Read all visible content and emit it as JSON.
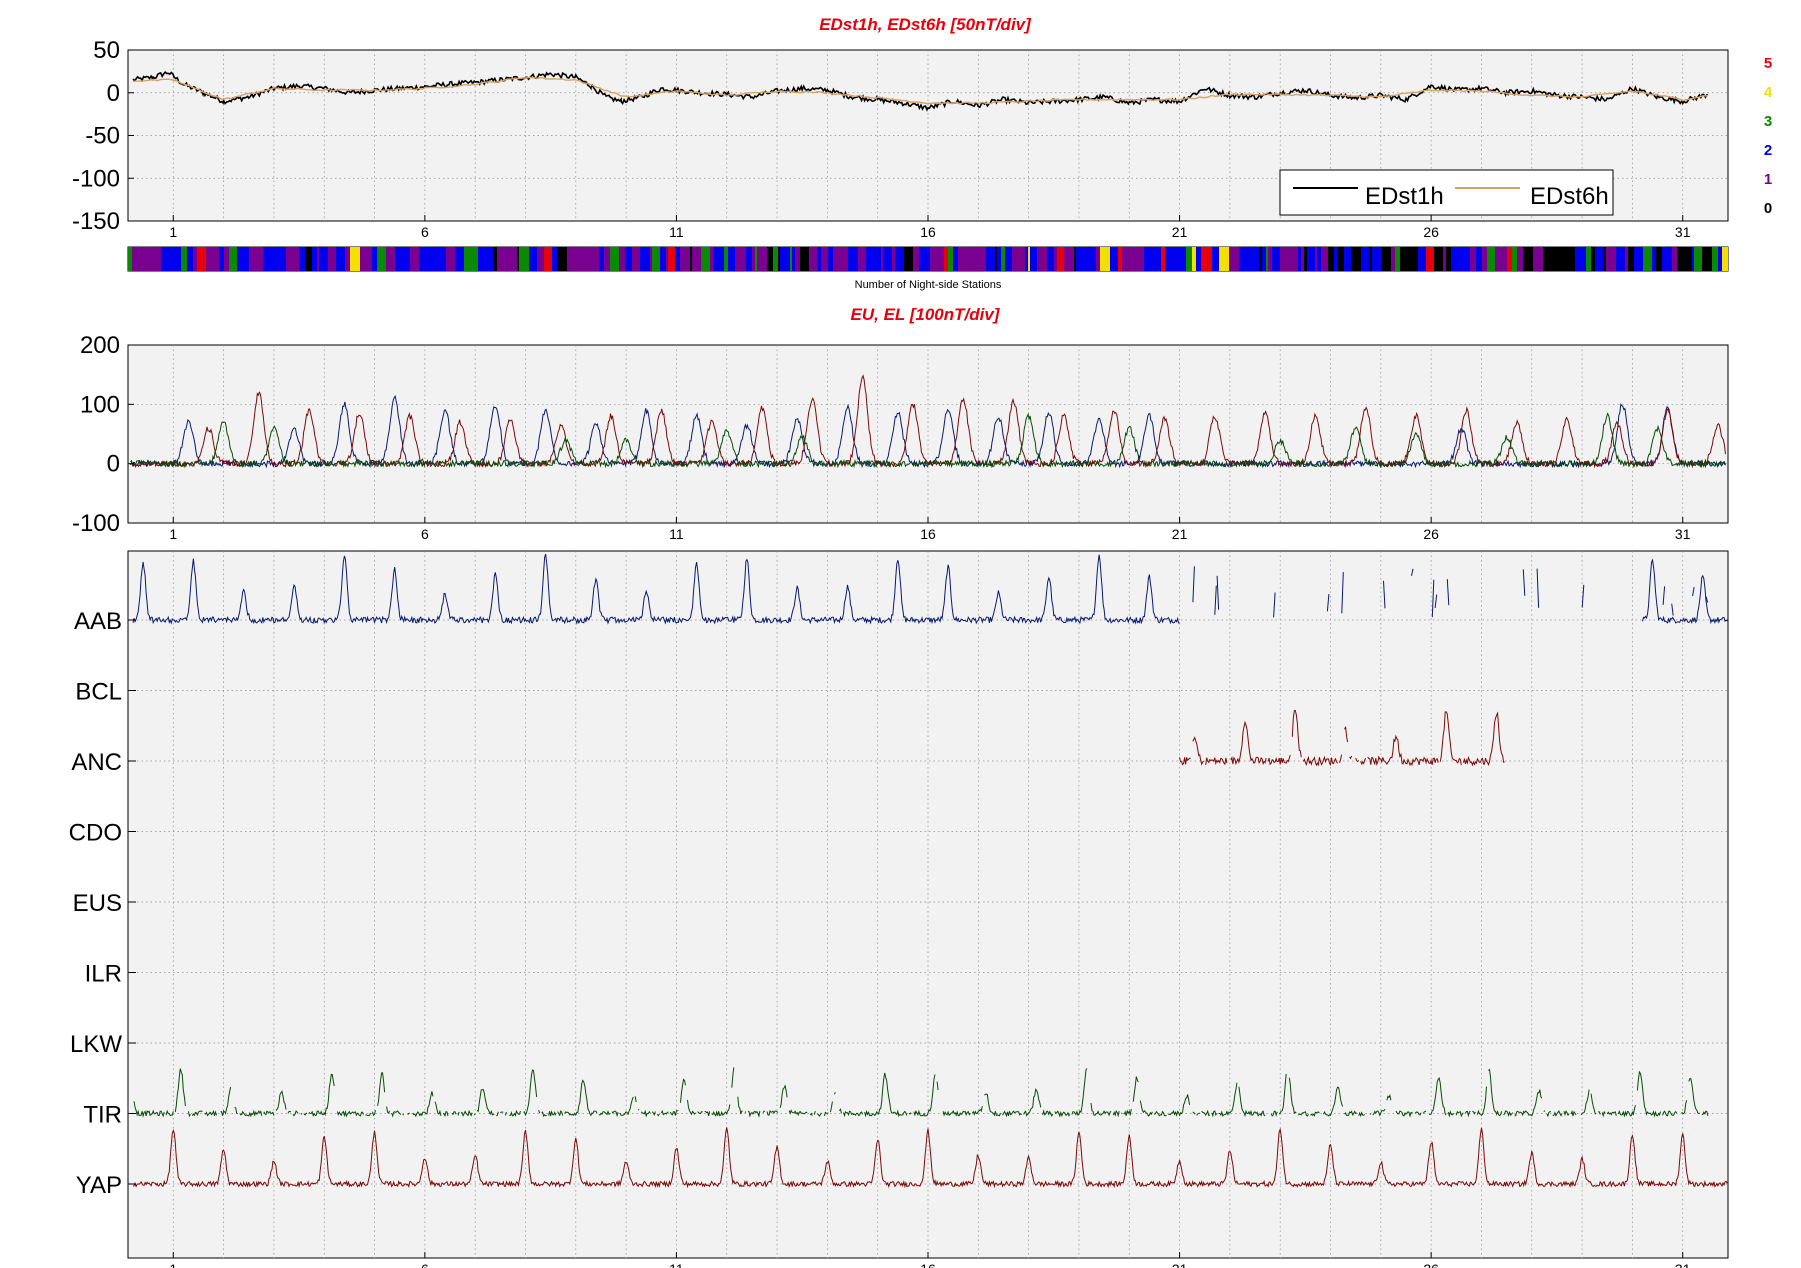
{
  "chart_data": [
    {
      "type": "line",
      "title": "EDst1h, EDst6h [50nT/div]",
      "ylim": [
        -150,
        50
      ],
      "yticks": [
        "50",
        "0",
        "-50",
        "-100",
        "-150"
      ],
      "xlim": [
        0.1,
        31.9
      ],
      "xticks": [
        "1",
        "6",
        "11",
        "16",
        "21",
        "26",
        "31"
      ],
      "grid": true,
      "legend_position": "bottom-right",
      "series": [
        {
          "name": "EDst1h",
          "color": "#000000",
          "x": [
            0.2,
            0.6,
            0.9,
            1.2,
            1.6,
            2.0,
            2.5,
            3.0,
            3.5,
            4.0,
            4.5,
            5.0,
            5.5,
            6.0,
            6.5,
            7.0,
            7.5,
            8.0,
            8.5,
            9.0,
            9.3,
            9.6,
            9.9,
            10.3,
            10.7,
            11.0,
            11.5,
            12.0,
            12.5,
            13.0,
            13.5,
            14.0,
            14.5,
            15.0,
            15.5,
            16.0,
            16.5,
            17.0,
            17.5,
            18.0,
            18.5,
            19.0,
            19.5,
            20.0,
            20.5,
            21.0,
            21.5,
            22.0,
            22.5,
            23.0,
            23.5,
            24.0,
            24.5,
            25.0,
            25.5,
            26.0,
            26.5,
            27.0,
            27.5,
            28.0,
            28.5,
            29.0,
            29.5,
            30.0,
            30.5,
            31.0,
            31.5
          ],
          "y": [
            15,
            18,
            24,
            10,
            0,
            -10,
            -5,
            5,
            8,
            5,
            0,
            3,
            5,
            7,
            10,
            12,
            15,
            18,
            22,
            18,
            8,
            -5,
            -10,
            -5,
            5,
            3,
            0,
            -2,
            -5,
            2,
            5,
            3,
            -5,
            -8,
            -12,
            -18,
            -10,
            -15,
            -8,
            -12,
            -10,
            -8,
            -5,
            -12,
            -8,
            -10,
            5,
            -3,
            -5,
            0,
            3,
            -3,
            -6,
            -3,
            -8,
            8,
            3,
            5,
            0,
            2,
            -3,
            -5,
            -8,
            5,
            -5,
            -10,
            -2
          ]
        },
        {
          "name": "EDst6h",
          "color": "#d9a066",
          "x": [
            0.2,
            1.0,
            2.0,
            3.0,
            4.0,
            5.0,
            6.0,
            7.0,
            8.0,
            9.0,
            10.0,
            11.0,
            12.0,
            13.0,
            14.0,
            15.0,
            16.0,
            17.0,
            18.0,
            19.0,
            20.0,
            21.0,
            22.0,
            23.0,
            24.0,
            25.0,
            26.0,
            27.0,
            28.0,
            29.0,
            30.0,
            31.0,
            31.5
          ],
          "y": [
            14,
            15,
            -8,
            5,
            3,
            3,
            5,
            10,
            18,
            15,
            -5,
            2,
            -3,
            2,
            0,
            -6,
            -12,
            -12,
            -10,
            -8,
            -8,
            -8,
            -2,
            -2,
            -3,
            -5,
            3,
            2,
            -3,
            -5,
            2,
            -8,
            -3
          ]
        }
      ]
    },
    {
      "type": "heatmap",
      "xlabel": "Number of Night-side Stations",
      "color_scale": [
        {
          "value": "5",
          "color": "#e8000b"
        },
        {
          "value": "4",
          "color": "#f4e000"
        },
        {
          "value": "3",
          "color": "#0a8a00"
        },
        {
          "value": "2",
          "color": "#0000ee"
        },
        {
          "value": "1",
          "color": "#7a0090"
        },
        {
          "value": "0",
          "color": "#000000"
        }
      ]
    },
    {
      "type": "line",
      "title": "EU, EL   [100nT/div]",
      "ylim": [
        -100,
        200
      ],
      "yticks": [
        "200",
        "100",
        "0",
        "-100"
      ],
      "xlim": [
        0.1,
        31.9
      ],
      "xticks": [
        "1",
        "6",
        "11",
        "16",
        "21",
        "26",
        "31"
      ],
      "grid": true,
      "series": [
        {
          "color": "#0a1a6e",
          "peak_days": [
            1.3,
            3.4,
            4.4,
            5.4,
            6.4,
            7.4,
            8.4,
            9.4,
            10.4,
            11.4,
            12.4,
            13.4,
            14.4,
            15.4,
            16.4,
            17.4,
            18.4,
            19.4,
            20.4,
            26.6,
            29.8,
            30.7
          ],
          "peak_values": [
            70,
            60,
            100,
            110,
            90,
            100,
            90,
            70,
            90,
            80,
            65,
            75,
            95,
            85,
            90,
            80,
            85,
            75,
            80,
            60,
            100,
            95
          ]
        },
        {
          "color": "#7a0a0a",
          "peak_days": [
            1.7,
            2.7,
            3.7,
            4.7,
            5.7,
            6.7,
            7.7,
            8.7,
            9.7,
            10.7,
            11.7,
            12.7,
            13.7,
            14.7,
            15.7,
            16.7,
            17.7,
            18.7,
            19.7,
            20.7,
            21.7,
            22.7,
            23.7,
            24.7,
            25.7,
            26.7,
            27.7,
            28.7,
            29.7,
            30.7,
            31.7
          ],
          "peak_values": [
            60,
            120,
            90,
            85,
            80,
            70,
            75,
            65,
            80,
            90,
            70,
            95,
            110,
            145,
            100,
            110,
            105,
            80,
            90,
            75,
            80,
            85,
            80,
            95,
            80,
            90,
            70,
            75,
            70,
            90,
            65
          ]
        },
        {
          "color": "#0a4a0a",
          "peak_days": [
            2.0,
            3.0,
            8.8,
            10.0,
            12.0,
            13.5,
            18.0,
            20.0,
            23.0,
            24.5,
            25.7,
            27.5,
            29.5,
            30.5
          ],
          "peak_values": [
            70,
            60,
            40,
            40,
            55,
            45,
            80,
            60,
            40,
            60,
            50,
            45,
            80,
            60
          ]
        }
      ]
    },
    {
      "type": "line",
      "stations": [
        "AAB",
        "BCL",
        "ANC",
        "CDO",
        "EUS",
        "ILR",
        "LKW",
        "TIR",
        "YAP"
      ],
      "xlim": [
        0.1,
        31.9
      ],
      "xticks": [
        "1",
        "6",
        "11",
        "16",
        "21",
        "26",
        "31"
      ],
      "grid": true,
      "series": [
        {
          "station": "AAB",
          "color": "#0a1a6e",
          "days": [
            1.0,
            21.0
          ],
          "sparse_after": 21.0
        },
        {
          "station": "ANC",
          "color": "#7a0a0a",
          "days": [
            21.0,
            27.5
          ]
        },
        {
          "station": "TIR",
          "color": "#0a4a0a",
          "days": [
            1.0,
            31.5
          ],
          "gappy": true
        },
        {
          "station": "YAP",
          "color": "#7a0a0a",
          "days": [
            1.0,
            31.9
          ]
        }
      ]
    }
  ],
  "legend": {
    "entries": [
      {
        "label": "EDst1h",
        "color": "#000000"
      },
      {
        "label": "EDst6h",
        "color": "#d9a066"
      }
    ]
  },
  "colors": {
    "title": "#e8000b",
    "axes_bg": "#f2f2f2",
    "grid": "#8c8c8c",
    "blue": "#0a1a6e",
    "red": "#7a0a0a",
    "green": "#0a4a0a"
  }
}
